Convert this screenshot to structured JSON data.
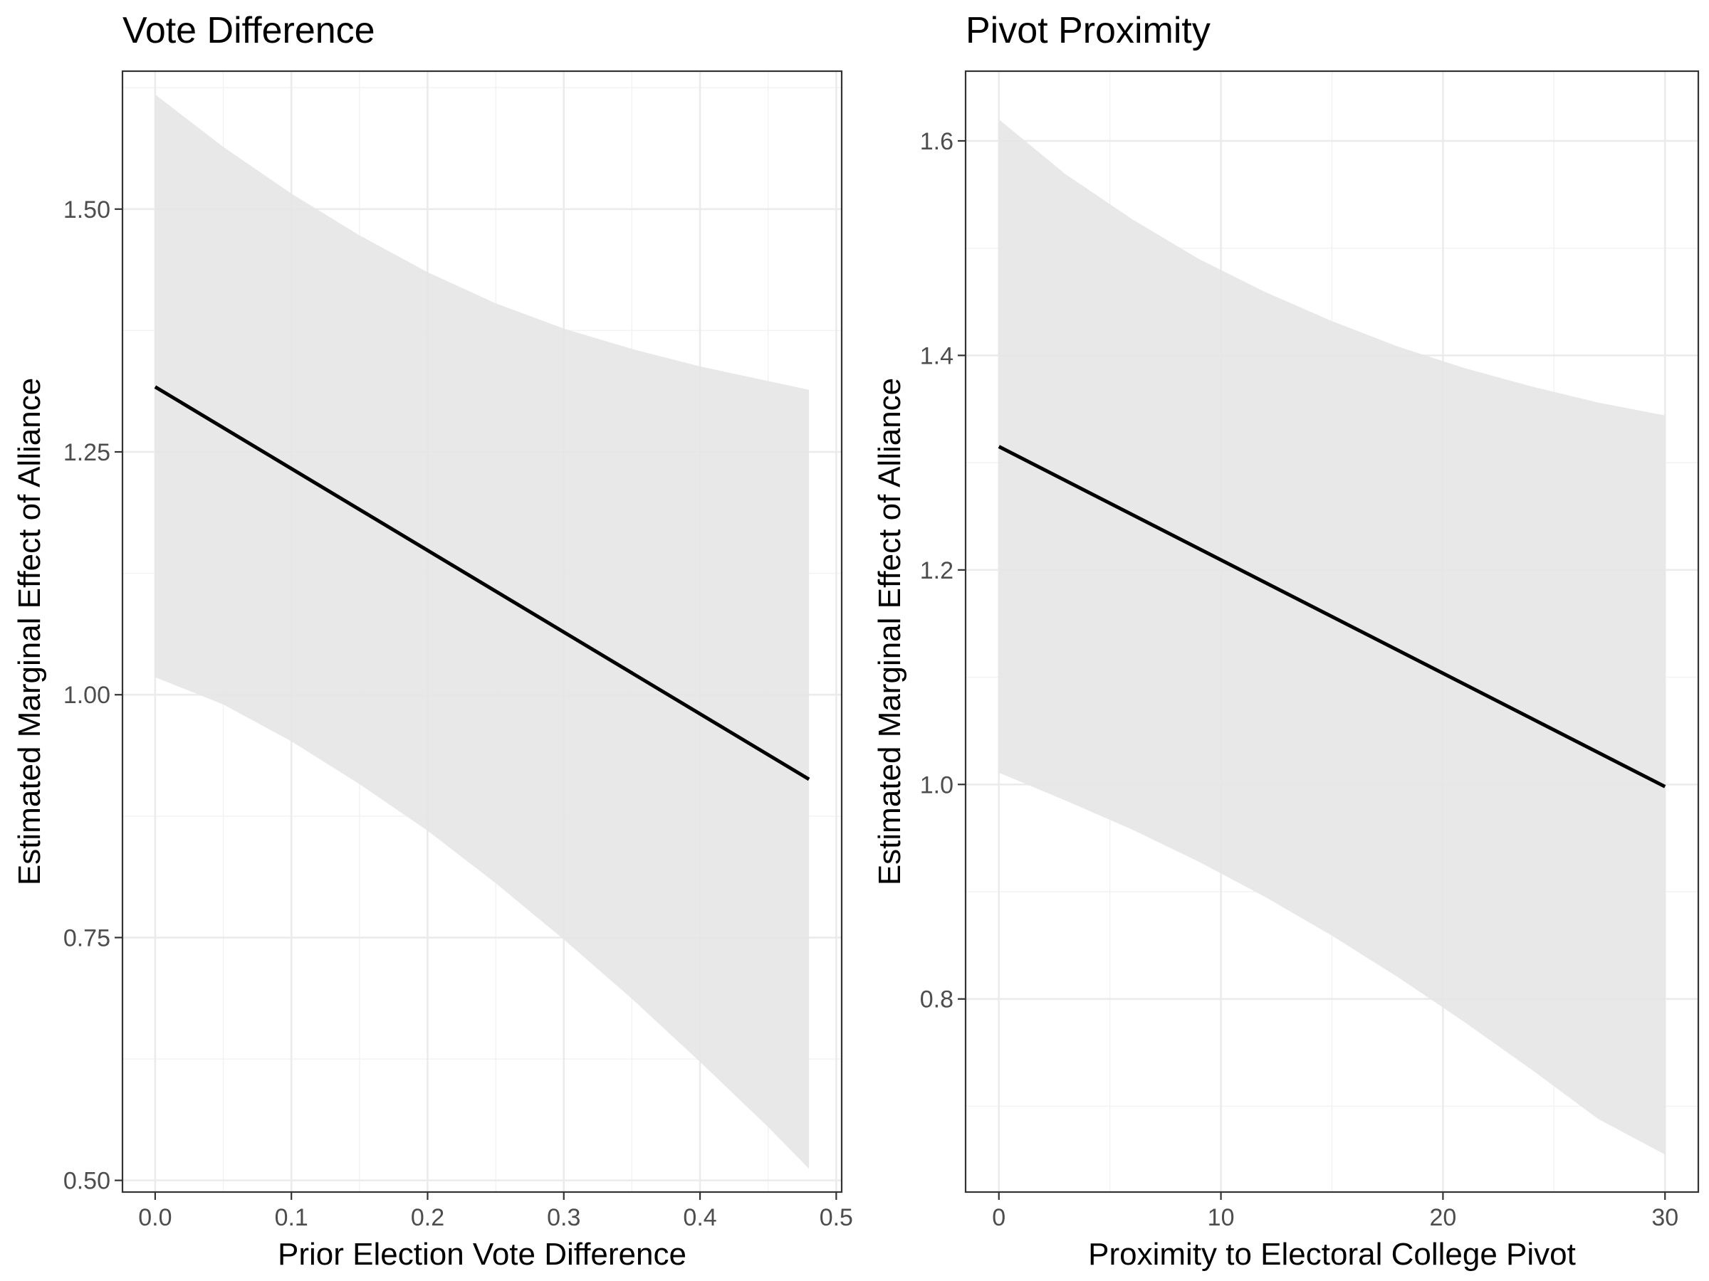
{
  "chart_data": [
    {
      "type": "line",
      "title": "Vote Difference",
      "xlabel": "Prior Election Vote Difference",
      "ylabel": "Estimated Marginal Effect of Alliance",
      "xlim": [
        -0.024,
        0.504
      ],
      "ylim": [
        0.488,
        1.642
      ],
      "x_ticks": [
        0.0,
        0.1,
        0.2,
        0.3,
        0.4,
        0.5
      ],
      "x_tick_labels": [
        "0.0",
        "0.1",
        "0.2",
        "0.3",
        "0.4",
        "0.5"
      ],
      "y_ticks": [
        0.5,
        0.75,
        1.0,
        1.25,
        1.5
      ],
      "y_tick_labels": [
        "0.50",
        "0.75",
        "1.00",
        "1.25",
        "1.50"
      ],
      "grid": true,
      "series": [
        {
          "kind": "line",
          "color": "#000000",
          "x": [
            0.0,
            0.48
          ],
          "y": [
            1.317,
            0.913
          ]
        },
        {
          "kind": "ribbon",
          "color": "#e6e6e6",
          "x": [
            0.0,
            0.05,
            0.1,
            0.15,
            0.2,
            0.25,
            0.3,
            0.35,
            0.4,
            0.45,
            0.48
          ],
          "lower": [
            1.018,
            0.99,
            0.952,
            0.908,
            0.86,
            0.806,
            0.748,
            0.687,
            0.622,
            0.555,
            0.512
          ],
          "upper": [
            1.618,
            1.564,
            1.516,
            1.473,
            1.435,
            1.403,
            1.377,
            1.356,
            1.338,
            1.323,
            1.314
          ]
        }
      ]
    },
    {
      "type": "line",
      "title": "Pivot Proximity",
      "xlabel": "Proximity to Electoral College Pivot",
      "ylabel": "Estimated Marginal Effect of Alliance",
      "xlim": [
        -1.5,
        31.5
      ],
      "ylim": [
        0.62,
        1.665
      ],
      "x_ticks": [
        0,
        10,
        20,
        30
      ],
      "x_tick_labels": [
        "0",
        "10",
        "20",
        "30"
      ],
      "y_ticks": [
        0.8,
        1.0,
        1.2,
        1.4,
        1.6
      ],
      "y_tick_labels": [
        "0.8",
        "1.0",
        "1.2",
        "1.4",
        "1.6"
      ],
      "grid": true,
      "series": [
        {
          "kind": "line",
          "color": "#000000",
          "x": [
            0,
            30
          ],
          "y": [
            1.315,
            0.998
          ]
        },
        {
          "kind": "ribbon",
          "color": "#e6e6e6",
          "x": [
            0,
            3,
            6,
            9,
            12,
            15,
            18,
            21,
            24,
            27,
            30
          ],
          "lower": [
            1.011,
            0.985,
            0.958,
            0.928,
            0.895,
            0.859,
            0.82,
            0.778,
            0.734,
            0.688,
            0.655
          ],
          "upper": [
            1.62,
            1.569,
            1.527,
            1.49,
            1.459,
            1.432,
            1.408,
            1.388,
            1.371,
            1.356,
            1.344
          ]
        }
      ]
    }
  ]
}
